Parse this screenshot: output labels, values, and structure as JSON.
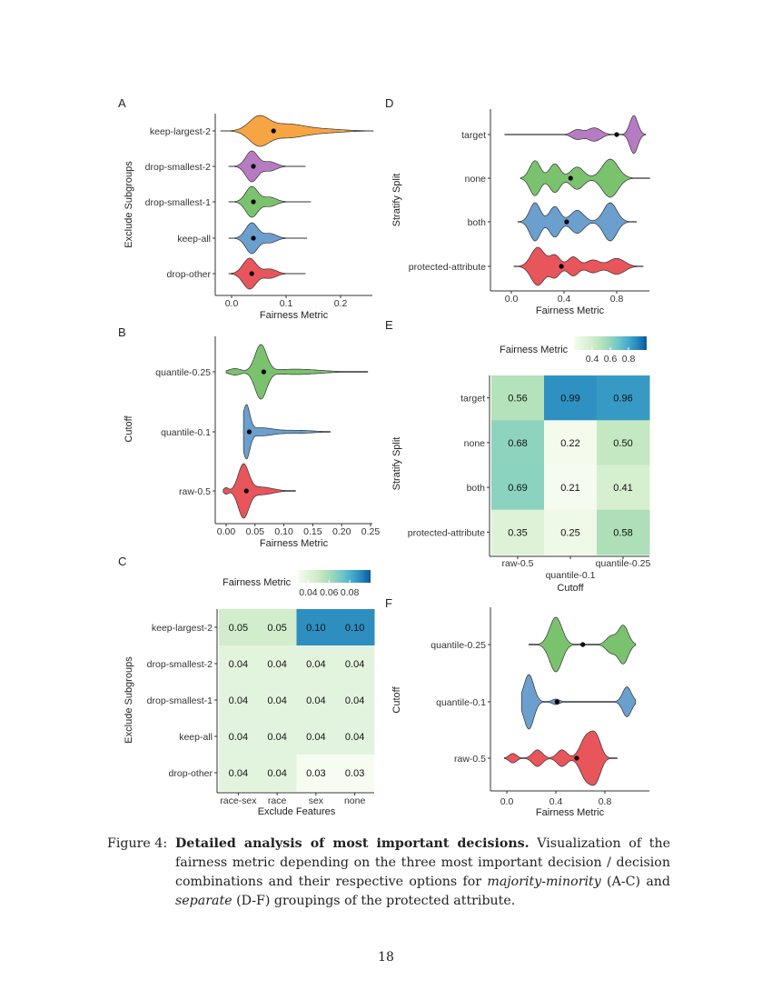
{
  "caption": {
    "label": "Figure 4:",
    "title": "Detailed analysis of most important decisions.",
    "text_1": " Visualization of the fairness metric depending on the three most important decision / decision combinations and their respective options for ",
    "em_1": "majority-minority",
    "text_2": " (A-C) and ",
    "em_2": "separate",
    "text_3": " (D-F) groupings of the protected attribute."
  },
  "page_number": "18",
  "chart_data": [
    {
      "panel": "A",
      "type": "violin",
      "xlabel": "Fairness Metric",
      "ylabel": "Exclude Subgroups",
      "xticks": [
        "0.0",
        "0.1",
        "0.2"
      ],
      "xtick_values": [
        0,
        0.1,
        0.2
      ],
      "categories": [
        "keep-largest-2",
        "drop-smallest-2",
        "drop-smallest-1",
        "keep-all",
        "drop-other"
      ],
      "series": [
        {
          "category": "keep-largest-2",
          "color": "#F7A442",
          "range": [
            -0.02,
            0.26
          ],
          "mean": 0.077,
          "modes": [
            [
              0.05,
              1,
              0.018
            ],
            [
              0.1,
              0.45,
              0.03
            ],
            [
              0.16,
              0.15,
              0.04
            ]
          ]
        },
        {
          "category": "drop-smallest-2",
          "color": "#B57CC2",
          "range": [
            -0.005,
            0.135
          ],
          "mean": 0.04,
          "modes": [
            [
              0.037,
              1,
              0.011
            ],
            [
              0.07,
              0.3,
              0.012
            ]
          ]
        },
        {
          "category": "drop-smallest-1",
          "color": "#7BC26F",
          "range": [
            -0.005,
            0.145
          ],
          "mean": 0.04,
          "modes": [
            [
              0.037,
              1,
              0.011
            ],
            [
              0.07,
              0.3,
              0.012
            ]
          ]
        },
        {
          "category": "keep-all",
          "color": "#6A9FCE",
          "range": [
            -0.005,
            0.138
          ],
          "mean": 0.04,
          "modes": [
            [
              0.037,
              1,
              0.011
            ],
            [
              0.07,
              0.3,
              0.012
            ]
          ]
        },
        {
          "category": "drop-other",
          "color": "#E8555B",
          "range": [
            -0.005,
            0.135
          ],
          "mean": 0.037,
          "modes": [
            [
              0.033,
              1,
              0.012
            ],
            [
              0.07,
              0.3,
              0.012
            ]
          ]
        }
      ]
    },
    {
      "panel": "B",
      "type": "violin",
      "xlabel": "Fairness Metric",
      "ylabel": "Cutoff",
      "xticks": [
        "0.00",
        "0.05",
        "0.10",
        "0.15",
        "0.20",
        "0.25"
      ],
      "xtick_values": [
        0,
        0.05,
        0.1,
        0.15,
        0.2,
        0.25
      ],
      "categories": [
        "quantile-0.25",
        "quantile-0.1",
        "raw-0.5"
      ],
      "series": [
        {
          "category": "quantile-0.25",
          "color": "#7BC26F",
          "range": [
            0.0,
            0.245
          ],
          "mean": 0.065,
          "modes": [
            [
              0.06,
              1,
              0.01
            ],
            [
              0.015,
              0.12,
              0.01
            ],
            [
              0.12,
              0.1,
              0.04
            ]
          ]
        },
        {
          "category": "quantile-0.1",
          "color": "#6A9FCE",
          "range": [
            0.03,
            0.18
          ],
          "mean": 0.04,
          "modes": [
            [
              0.035,
              1,
              0.006
            ],
            [
              0.06,
              0.15,
              0.02
            ],
            [
              0.12,
              0.06,
              0.03
            ]
          ]
        },
        {
          "category": "raw-0.5",
          "color": "#E8555B",
          "range": [
            -0.005,
            0.12
          ],
          "mean": 0.035,
          "modes": [
            [
              0.03,
              1,
              0.009
            ],
            [
              0.0,
              0.12,
              0.004
            ],
            [
              0.06,
              0.15,
              0.02
            ]
          ]
        }
      ]
    },
    {
      "panel": "C",
      "type": "heatmap",
      "xlabel": "Exclude Features",
      "ylabel": "Exclude Subgroups",
      "legend_title": "Fairness Metric",
      "legend_ticks": [
        "0.04",
        "0.06",
        "0.08"
      ],
      "legend_tick_values": [
        0.04,
        0.06,
        0.08
      ],
      "color_range": [
        0.03,
        0.1
      ],
      "colormap": "GnBu",
      "x_categories": [
        "race-sex",
        "race",
        "sex",
        "none"
      ],
      "y_categories": [
        "keep-largest-2",
        "drop-smallest-2",
        "drop-smallest-1",
        "keep-all",
        "drop-other"
      ],
      "values": [
        [
          "0.05",
          "0.05",
          "0.10",
          "0.10"
        ],
        [
          "0.04",
          "0.04",
          "0.04",
          "0.04"
        ],
        [
          "0.04",
          "0.04",
          "0.04",
          "0.04"
        ],
        [
          "0.04",
          "0.04",
          "0.04",
          "0.04"
        ],
        [
          "0.04",
          "0.04",
          "0.03",
          "0.03"
        ]
      ]
    },
    {
      "panel": "D",
      "type": "violin",
      "xlabel": "Fairness Metric",
      "ylabel": "Stratify Split",
      "xticks": [
        "0.0",
        "0.4",
        "0.8"
      ],
      "xtick_values": [
        0,
        0.4,
        0.8
      ],
      "categories": [
        "target",
        "none",
        "both",
        "protected-attribute"
      ],
      "series": [
        {
          "category": "target",
          "color": "#B57CC2",
          "range": [
            -0.05,
            1.02
          ],
          "mean": 0.8,
          "modes": [
            [
              0.5,
              0.25,
              0.04
            ],
            [
              0.63,
              0.35,
              0.05
            ],
            [
              0.93,
              1,
              0.03
            ]
          ]
        },
        {
          "category": "none",
          "color": "#7BC26F",
          "range": [
            0.07,
            1.05
          ],
          "mean": 0.45,
          "modes": [
            [
              0.18,
              0.55,
              0.04
            ],
            [
              0.33,
              0.45,
              0.04
            ],
            [
              0.5,
              0.35,
              0.05
            ],
            [
              0.75,
              0.6,
              0.06
            ]
          ]
        },
        {
          "category": "both",
          "color": "#6A9FCE",
          "range": [
            0.05,
            0.95
          ],
          "mean": 0.42,
          "modes": [
            [
              0.18,
              0.5,
              0.04
            ],
            [
              0.33,
              0.4,
              0.04
            ],
            [
              0.5,
              0.3,
              0.05
            ],
            [
              0.75,
              0.5,
              0.05
            ]
          ]
        },
        {
          "category": "protected-attribute",
          "color": "#E8555B",
          "range": [
            0.02,
            1.0
          ],
          "mean": 0.38,
          "modes": [
            [
              0.2,
              0.6,
              0.05
            ],
            [
              0.33,
              0.35,
              0.04
            ],
            [
              0.47,
              0.3,
              0.04
            ],
            [
              0.62,
              0.2,
              0.05
            ],
            [
              0.8,
              0.25,
              0.06
            ]
          ]
        }
      ]
    },
    {
      "panel": "E",
      "type": "heatmap",
      "xlabel": "Cutoff",
      "ylabel": "Stratify Split",
      "legend_title": "Fairness Metric",
      "legend_ticks": [
        "0.4",
        "0.6",
        "0.8"
      ],
      "legend_tick_values": [
        0.4,
        0.6,
        0.8
      ],
      "color_range": [
        0.21,
        0.99
      ],
      "colormap": "GnBu",
      "x_categories": [
        "raw-0.5",
        "quantile-0.1",
        "quantile-0.25"
      ],
      "y_categories": [
        "target",
        "none",
        "both",
        "protected-attribute"
      ],
      "values": [
        [
          "0.56",
          "0.99",
          "0.96"
        ],
        [
          "0.68",
          "0.22",
          "0.50"
        ],
        [
          "0.69",
          "0.21",
          "0.41"
        ],
        [
          "0.35",
          "0.25",
          "0.58"
        ]
      ]
    },
    {
      "panel": "F",
      "type": "violin",
      "xlabel": "Fairness Metric",
      "ylabel": "Cutoff",
      "xticks": [
        "0.0",
        "0.4",
        "0.8"
      ],
      "xtick_values": [
        0,
        0.4,
        0.8
      ],
      "categories": [
        "quantile-0.25",
        "quantile-0.1",
        "raw-0.5"
      ],
      "series": [
        {
          "category": "quantile-0.25",
          "color": "#7BC26F",
          "range": [
            0.18,
            1.05
          ],
          "mean": 0.62,
          "modes": [
            [
              0.4,
              1,
              0.05
            ],
            [
              0.95,
              0.7,
              0.04
            ],
            [
              0.85,
              0.3,
              0.04
            ]
          ]
        },
        {
          "category": "quantile-0.1",
          "color": "#6A9FCE",
          "range": [
            0.12,
            1.05
          ],
          "mean": 0.41,
          "modes": [
            [
              0.18,
              1,
              0.04
            ],
            [
              0.98,
              0.55,
              0.035
            ],
            [
              0.4,
              0.1,
              0.03
            ]
          ]
        },
        {
          "category": "raw-0.5",
          "color": "#E8555B",
          "range": [
            -0.02,
            0.9
          ],
          "mean": 0.57,
          "modes": [
            [
              0.05,
              0.2,
              0.03
            ],
            [
              0.25,
              0.35,
              0.04
            ],
            [
              0.45,
              0.35,
              0.04
            ],
            [
              0.65,
              0.9,
              0.05
            ],
            [
              0.73,
              0.8,
              0.04
            ]
          ]
        }
      ]
    }
  ]
}
